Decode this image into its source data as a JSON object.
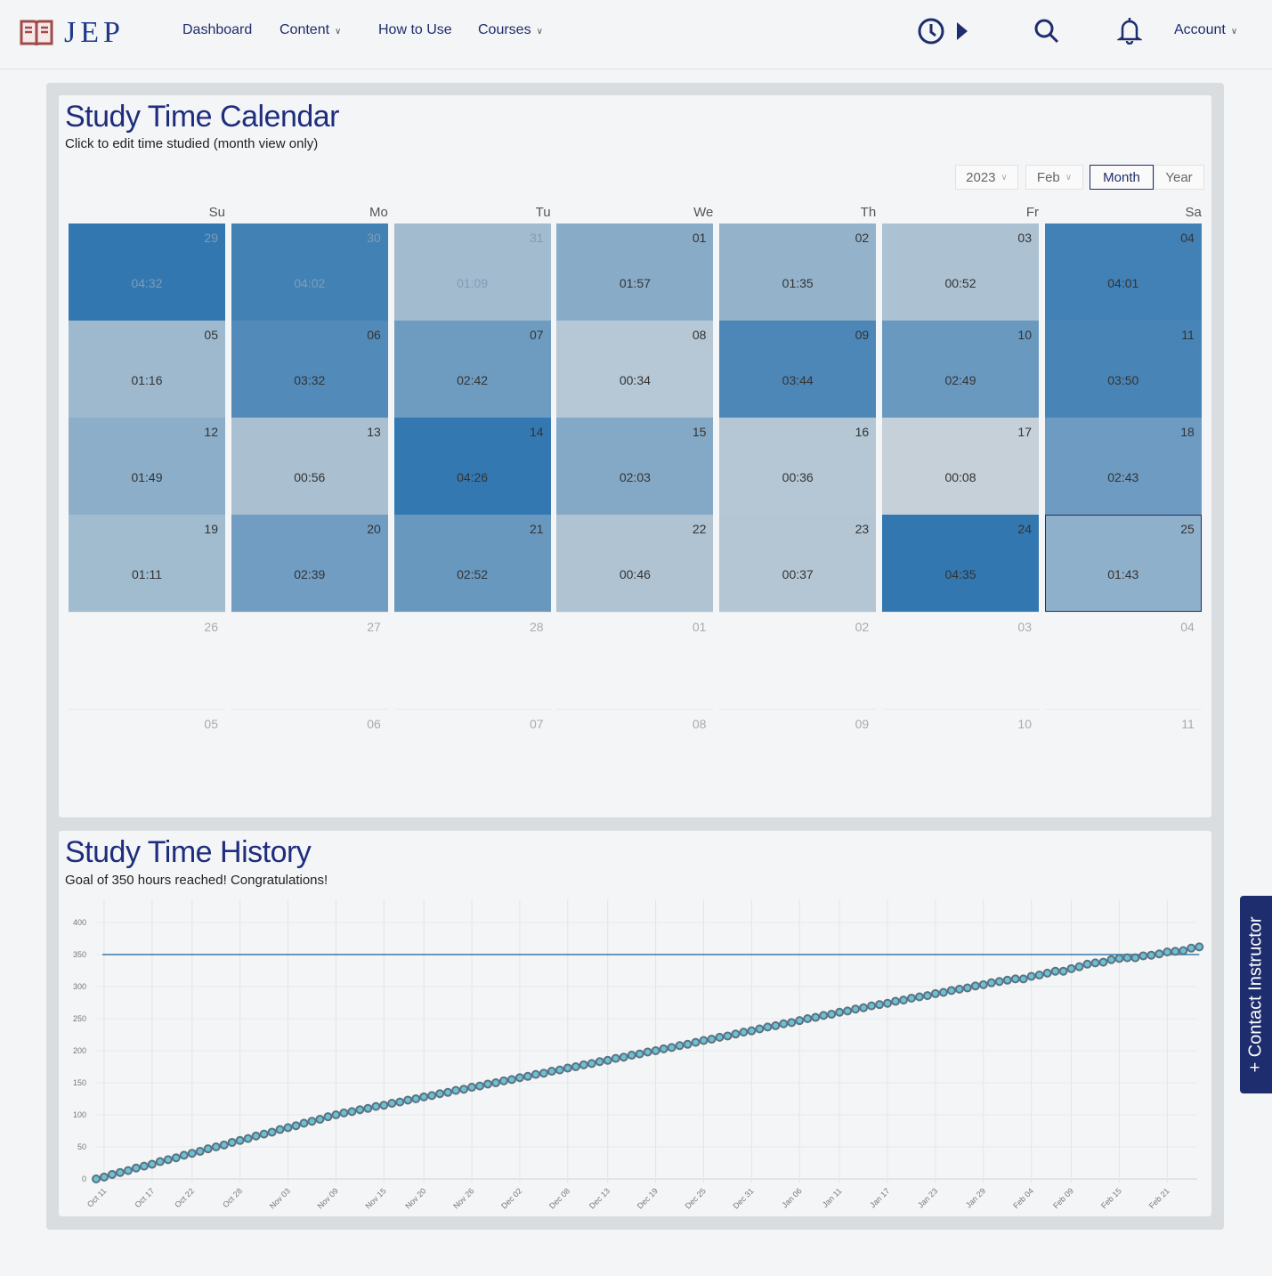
{
  "nav": {
    "logo": "JEP",
    "links": [
      {
        "label": "Dashboard",
        "dropdown": false
      },
      {
        "label": "Content",
        "dropdown": true
      },
      {
        "label": "How to Use",
        "dropdown": false
      },
      {
        "label": "Courses",
        "dropdown": true
      }
    ],
    "account": "Account",
    "icons": [
      "clock-icon",
      "play-icon",
      "search-icon",
      "bell-icon"
    ]
  },
  "calendar": {
    "title": "Study Time Calendar",
    "subtitle": "Click to edit time studied (month view only)",
    "year": "2023",
    "month": "Feb",
    "view_month": "Month",
    "view_year": "Year",
    "active_view": "Month",
    "weekdays": [
      "Su",
      "Mo",
      "Tu",
      "We",
      "Th",
      "Fr",
      "Sa"
    ],
    "colors": {
      "low": "#c9d3da",
      "high": "#3277b0",
      "selected_border": "#1e2d5e"
    },
    "weeks": [
      [
        {
          "day": "29",
          "time": "04:32",
          "muted": true
        },
        {
          "day": "30",
          "time": "04:02",
          "muted": true
        },
        {
          "day": "31",
          "time": "01:09",
          "muted": true
        },
        {
          "day": "01",
          "time": "01:57"
        },
        {
          "day": "02",
          "time": "01:35"
        },
        {
          "day": "03",
          "time": "00:52"
        },
        {
          "day": "04",
          "time": "04:01"
        }
      ],
      [
        {
          "day": "05",
          "time": "01:16"
        },
        {
          "day": "06",
          "time": "03:32"
        },
        {
          "day": "07",
          "time": "02:42"
        },
        {
          "day": "08",
          "time": "00:34"
        },
        {
          "day": "09",
          "time": "03:44"
        },
        {
          "day": "10",
          "time": "02:49"
        },
        {
          "day": "11",
          "time": "03:50"
        }
      ],
      [
        {
          "day": "12",
          "time": "01:49"
        },
        {
          "day": "13",
          "time": "00:56"
        },
        {
          "day": "14",
          "time": "04:26"
        },
        {
          "day": "15",
          "time": "02:03"
        },
        {
          "day": "16",
          "time": "00:36"
        },
        {
          "day": "17",
          "time": "00:08"
        },
        {
          "day": "18",
          "time": "02:43"
        }
      ],
      [
        {
          "day": "19",
          "time": "01:11"
        },
        {
          "day": "20",
          "time": "02:39"
        },
        {
          "day": "21",
          "time": "02:52"
        },
        {
          "day": "22",
          "time": "00:46"
        },
        {
          "day": "23",
          "time": "00:37"
        },
        {
          "day": "24",
          "time": "04:35"
        },
        {
          "day": "25",
          "time": "01:43",
          "selected": true
        }
      ],
      [
        {
          "day": "26"
        },
        {
          "day": "27"
        },
        {
          "day": "28"
        },
        {
          "day": "01"
        },
        {
          "day": "02"
        },
        {
          "day": "03"
        },
        {
          "day": "04"
        }
      ],
      [
        {
          "day": "05"
        },
        {
          "day": "06"
        },
        {
          "day": "07"
        },
        {
          "day": "08"
        },
        {
          "day": "09"
        },
        {
          "day": "10"
        },
        {
          "day": "11"
        }
      ]
    ]
  },
  "history": {
    "title": "Study Time History",
    "subtitle": "Goal of 350 hours reached! Congratulations!"
  },
  "chart_data": {
    "type": "line",
    "title": "",
    "xlabel": "",
    "ylabel": "",
    "ylim": [
      0,
      400
    ],
    "yticks": [
      0,
      50,
      100,
      150,
      200,
      250,
      300,
      350,
      400
    ],
    "x_range": [
      "2022-10-10",
      "2023-02-25"
    ],
    "xticks": [
      "Oct 11",
      "Oct 17",
      "Oct 22",
      "Oct 28",
      "Nov 03",
      "Nov 09",
      "Nov 15",
      "Nov 20",
      "Nov 26",
      "Dec 02",
      "Dec 08",
      "Dec 13",
      "Dec 19",
      "Dec 25",
      "Dec 31",
      "Jan 06",
      "Jan 11",
      "Jan 17",
      "Jan 23",
      "Jan 29",
      "Feb 04",
      "Feb 09",
      "Feb 15",
      "Feb 21"
    ],
    "xtick_dates": [
      "2022-10-11",
      "2022-10-17",
      "2022-10-22",
      "2022-10-28",
      "2022-11-03",
      "2022-11-09",
      "2022-11-15",
      "2022-11-20",
      "2022-11-26",
      "2022-12-02",
      "2022-12-08",
      "2022-12-13",
      "2022-12-19",
      "2022-12-25",
      "2022-12-31",
      "2023-01-06",
      "2023-01-11",
      "2023-01-17",
      "2023-01-23",
      "2023-01-29",
      "2023-02-04",
      "2023-02-09",
      "2023-02-15",
      "2023-02-21"
    ],
    "goal": 350,
    "grid": true,
    "colors": {
      "goal_line": "#3b7bab",
      "point_fill": "#6cc0d8",
      "point_stroke": "#5a7480"
    },
    "series": [
      {
        "values": [
          0,
          3,
          7,
          10,
          13,
          17,
          20,
          23,
          27,
          30,
          33,
          37,
          40,
          43,
          47,
          50,
          53,
          57,
          60,
          63,
          67,
          70,
          73,
          77,
          80,
          83,
          87,
          90,
          93,
          97,
          100,
          103,
          105,
          108,
          110,
          113,
          115,
          118,
          120,
          123,
          125,
          128,
          130,
          133,
          135,
          138,
          140,
          143,
          145,
          148,
          150,
          153,
          155,
          158,
          160,
          163,
          165,
          168,
          170,
          173,
          175,
          178,
          180,
          183,
          185,
          188,
          190,
          193,
          195,
          198,
          200,
          203,
          205,
          208,
          210,
          213,
          216,
          218,
          221,
          223,
          226,
          229,
          231,
          234,
          237,
          239,
          242,
          244,
          247,
          250,
          252,
          255,
          257,
          260,
          262,
          265,
          267,
          270,
          272,
          274,
          277,
          279,
          282,
          284,
          286,
          289,
          291,
          294,
          296,
          298,
          301,
          303,
          306,
          308,
          310,
          312,
          312,
          316,
          318,
          321,
          324,
          324,
          328,
          331,
          335,
          337,
          338,
          342,
          344,
          345,
          345,
          348,
          349,
          351,
          354,
          355,
          356,
          360,
          362
        ]
      }
    ]
  },
  "contact": {
    "label": "+ Contact Instructor"
  }
}
